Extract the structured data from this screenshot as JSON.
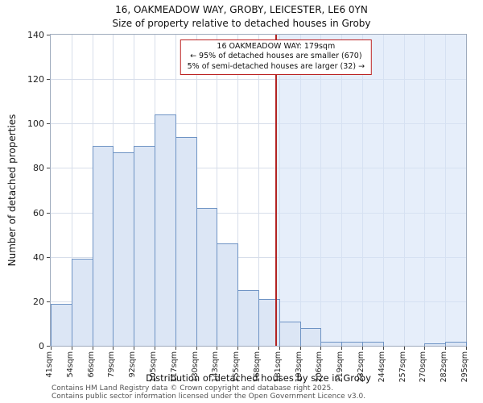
{
  "chart_data": {
    "type": "bar",
    "title": "16, OAKMEADOW WAY, GROBY, LEICESTER, LE6 0YN",
    "subtitle": "Size of property relative to detached houses in Groby",
    "xlabel": "Distribution of detached houses by size in Groby",
    "ylabel": "Number of detached properties",
    "bin_edges": [
      41,
      54,
      66,
      79,
      92,
      105,
      117,
      130,
      143,
      155,
      168,
      181,
      193,
      206,
      219,
      232,
      244,
      257,
      270,
      282,
      295
    ],
    "bin_labels": [
      "41sqm",
      "54sqm",
      "66sqm",
      "79sqm",
      "92sqm",
      "105sqm",
      "117sqm",
      "130sqm",
      "143sqm",
      "155sqm",
      "168sqm",
      "181sqm",
      "193sqm",
      "206sqm",
      "219sqm",
      "232sqm",
      "244sqm",
      "257sqm",
      "270sqm",
      "282sqm",
      "295sqm"
    ],
    "values": [
      19,
      39,
      90,
      87,
      90,
      104,
      94,
      62,
      46,
      25,
      21,
      11,
      8,
      2,
      2,
      2,
      0,
      0,
      1,
      2
    ],
    "ylim": [
      0,
      140
    ],
    "yticks": [
      0,
      20,
      40,
      60,
      80,
      100,
      120,
      140
    ],
    "grid": true,
    "legend_position": "none",
    "marker": {
      "value_sqm": 179,
      "color": "#b22222"
    },
    "highlight_from_sqm": 179,
    "colors": {
      "bar_fill": "#dce6f5",
      "bar_border": "#6e93c4",
      "grid": "#d7deea",
      "highlight": "rgba(213,227,246,0.6)",
      "marker_red": "#b22222"
    }
  },
  "annotation": {
    "line1": "16 OAKMEADOW WAY: 179sqm",
    "line2": "← 95% of detached houses are smaller (670)",
    "line3": "5% of semi-detached houses are larger (32) →"
  },
  "footer": {
    "line1": "Contains HM Land Registry data © Crown copyright and database right 2025.",
    "line2": "Contains public sector information licensed under the Open Government Licence v3.0."
  }
}
